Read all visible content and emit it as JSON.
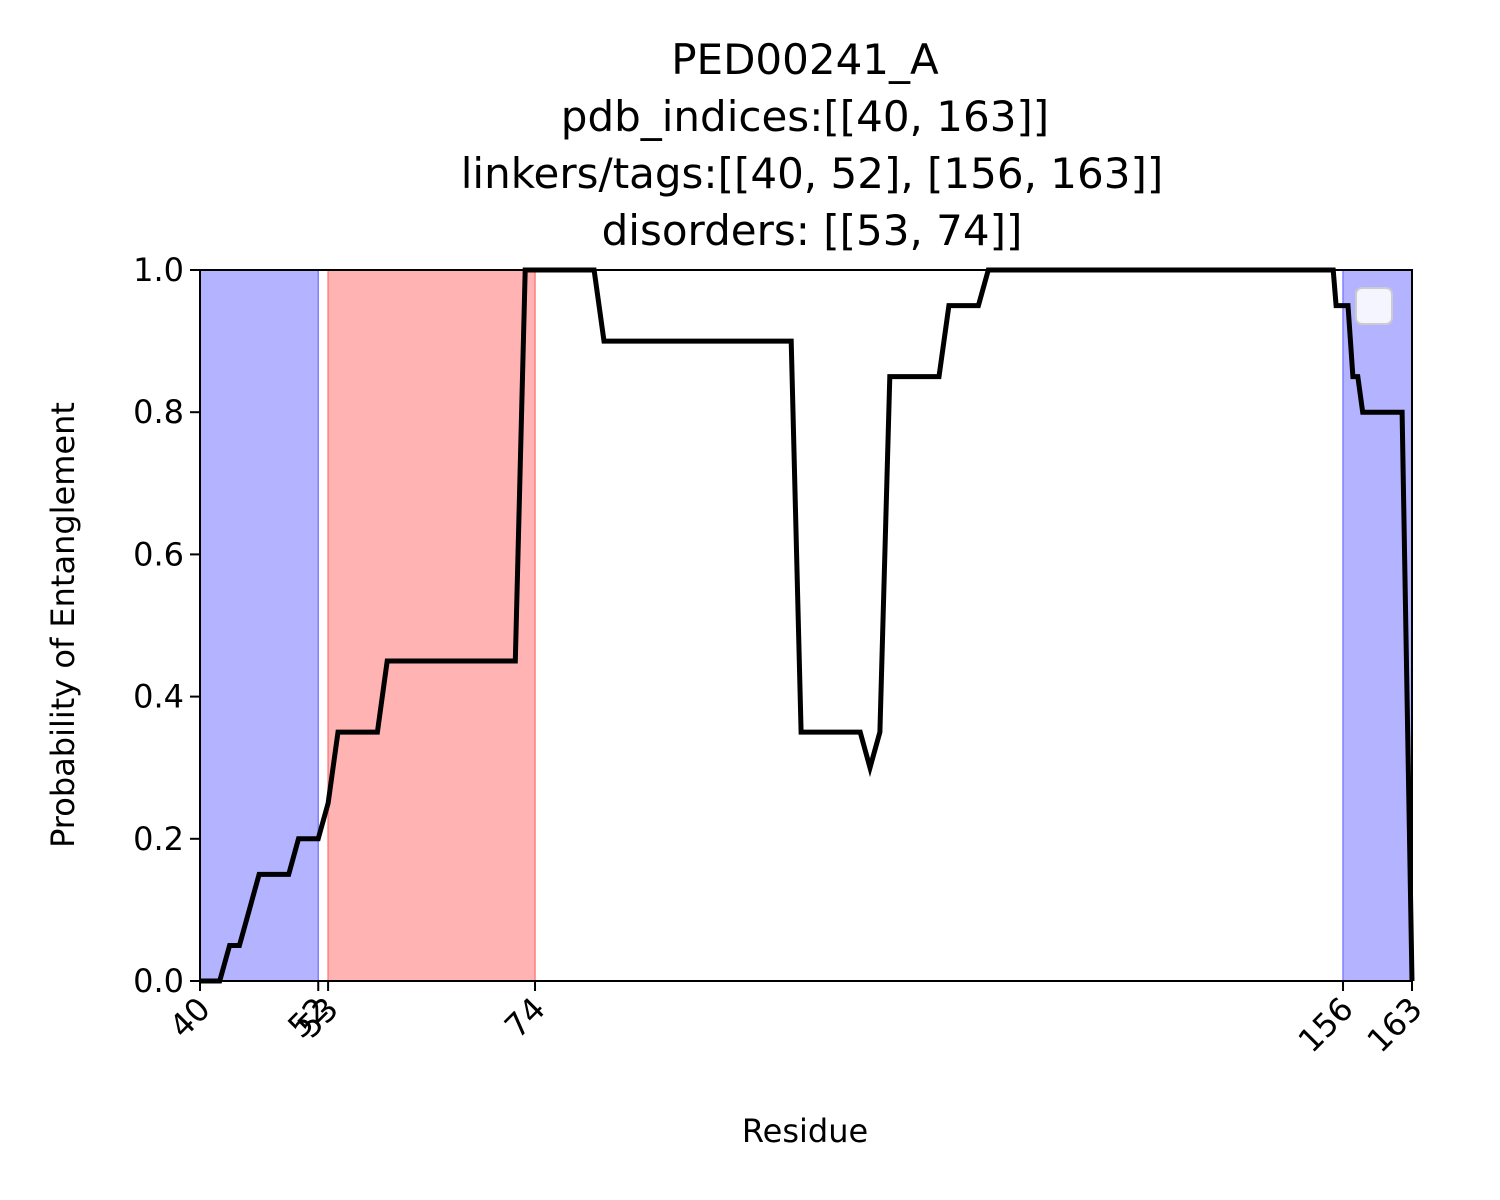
{
  "chart_data": {
    "type": "line",
    "title_lines": [
      "PED00241_A",
      "pdb_indices:[[40, 163]]",
      "linkers/tags:[[40, 52], [156, 163]]",
      "disorders: [[53, 74]]"
    ],
    "xlabel": "Residue",
    "ylabel": "Probability of Entanglement",
    "xlim": [
      40,
      163
    ],
    "ylim": [
      0,
      1
    ],
    "x_ticks": [
      {
        "value": 40,
        "label": "40"
      },
      {
        "value": 52,
        "label": "52"
      },
      {
        "value": 53,
        "label": "53"
      },
      {
        "value": 74,
        "label": "74"
      },
      {
        "value": 156,
        "label": "156"
      },
      {
        "value": 163,
        "label": "163"
      }
    ],
    "y_ticks": [
      {
        "value": 0.0,
        "label": "0.0"
      },
      {
        "value": 0.2,
        "label": "0.2"
      },
      {
        "value": 0.4,
        "label": "0.4"
      },
      {
        "value": 0.6,
        "label": "0.6"
      },
      {
        "value": 0.8,
        "label": "0.8"
      },
      {
        "value": 1.0,
        "label": "1.0"
      }
    ],
    "shaded_regions": [
      {
        "kind": "linker",
        "start": 40,
        "end": 52,
        "color": "#b3b3ff"
      },
      {
        "kind": "disorder",
        "start": 53,
        "end": 74,
        "color": "#ffb3b3"
      },
      {
        "kind": "linker",
        "start": 156,
        "end": 163,
        "color": "#b3b3ff"
      }
    ],
    "line_color": "#000000",
    "legend": {
      "placement": "top-right",
      "entries": []
    },
    "grid": false,
    "series": [
      {
        "x": [
          40,
          42,
          43,
          44,
          45,
          46,
          47,
          48,
          49,
          50,
          51,
          52,
          53,
          54,
          55,
          58,
          59,
          60,
          72,
          73,
          74,
          80,
          81,
          100,
          101,
          102,
          107,
          108,
          109,
          110,
          111,
          115,
          116,
          119,
          120,
          121,
          132,
          155,
          155.3,
          156.5,
          157,
          157.5,
          158,
          158.5,
          162,
          163
        ],
        "y": [
          0.0,
          0.0,
          0.05,
          0.05,
          0.1,
          0.15,
          0.15,
          0.15,
          0.15,
          0.2,
          0.2,
          0.2,
          0.25,
          0.35,
          0.35,
          0.35,
          0.45,
          0.45,
          0.45,
          1.0,
          1.0,
          1.0,
          0.9,
          0.9,
          0.35,
          0.35,
          0.35,
          0.3,
          0.35,
          0.85,
          0.85,
          0.85,
          0.95,
          0.95,
          1.0,
          1.0,
          1.0,
          1.0,
          0.95,
          0.95,
          0.85,
          0.85,
          0.8,
          0.8,
          0.8,
          0.0
        ]
      }
    ]
  }
}
